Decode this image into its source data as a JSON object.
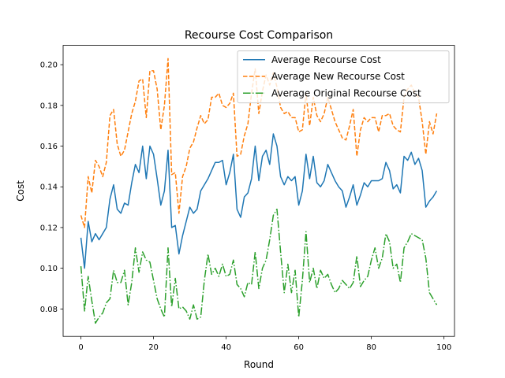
{
  "chart_data": {
    "type": "line",
    "title": "Recourse Cost Comparison",
    "xlabel": "Round",
    "ylabel": "Cost",
    "xlim": [
      -4.9,
      102.9
    ],
    "ylim": [
      0.0665,
      0.2095
    ],
    "xticks": [
      0,
      20,
      40,
      60,
      80,
      100
    ],
    "yticks": [
      0.08,
      0.1,
      0.12,
      0.14,
      0.16,
      0.18,
      0.2
    ],
    "grid": false,
    "legend_position": "upper right",
    "x": [
      0,
      1,
      2,
      3,
      4,
      5,
      6,
      7,
      8,
      9,
      10,
      11,
      12,
      13,
      14,
      15,
      16,
      17,
      18,
      19,
      20,
      21,
      22,
      23,
      24,
      25,
      26,
      27,
      28,
      29,
      30,
      31,
      32,
      33,
      34,
      35,
      36,
      37,
      38,
      39,
      40,
      41,
      42,
      43,
      44,
      45,
      46,
      47,
      48,
      49,
      50,
      51,
      52,
      53,
      54,
      55,
      56,
      57,
      58,
      59,
      60,
      61,
      62,
      63,
      64,
      65,
      66,
      67,
      68,
      69,
      70,
      71,
      72,
      73,
      74,
      75,
      76,
      77,
      78,
      79,
      80,
      81,
      82,
      83,
      84,
      85,
      86,
      87,
      88,
      89,
      90,
      91,
      92,
      93,
      94,
      95,
      96,
      97,
      98
    ],
    "series": [
      {
        "name": "Average Recourse Cost",
        "color": "#1f77b4",
        "dash": "solid",
        "values": [
          0.115,
          0.1,
          0.123,
          0.113,
          0.117,
          0.114,
          0.117,
          0.12,
          0.134,
          0.141,
          0.129,
          0.127,
          0.132,
          0.131,
          0.142,
          0.151,
          0.147,
          0.16,
          0.144,
          0.16,
          0.156,
          0.144,
          0.131,
          0.138,
          0.158,
          0.12,
          0.121,
          0.107,
          0.116,
          0.123,
          0.13,
          0.127,
          0.129,
          0.138,
          0.141,
          0.144,
          0.148,
          0.152,
          0.152,
          0.153,
          0.141,
          0.147,
          0.156,
          0.129,
          0.125,
          0.135,
          0.137,
          0.144,
          0.16,
          0.143,
          0.155,
          0.158,
          0.151,
          0.166,
          0.16,
          0.145,
          0.141,
          0.145,
          0.143,
          0.145,
          0.131,
          0.138,
          0.156,
          0.144,
          0.155,
          0.142,
          0.14,
          0.143,
          0.151,
          0.147,
          0.143,
          0.14,
          0.138,
          0.13,
          0.135,
          0.141,
          0.131,
          0.136,
          0.142,
          0.14,
          0.143,
          0.143,
          0.143,
          0.144,
          0.152,
          0.148,
          0.139,
          0.141,
          0.137,
          0.155,
          0.153,
          0.157,
          0.151,
          0.154,
          0.148,
          0.13,
          0.133,
          0.135,
          0.138
        ]
      },
      {
        "name": "Average New Recourse Cost",
        "color": "#ff7f0e",
        "dash": "dashed",
        "values": [
          0.126,
          0.12,
          0.145,
          0.137,
          0.153,
          0.15,
          0.145,
          0.152,
          0.175,
          0.178,
          0.161,
          0.155,
          0.158,
          0.167,
          0.176,
          0.182,
          0.192,
          0.193,
          0.174,
          0.197,
          0.197,
          0.188,
          0.168,
          0.18,
          0.203,
          0.146,
          0.147,
          0.127,
          0.145,
          0.15,
          0.159,
          0.162,
          0.169,
          0.175,
          0.171,
          0.173,
          0.184,
          0.184,
          0.186,
          0.18,
          0.179,
          0.181,
          0.186,
          0.155,
          0.156,
          0.165,
          0.171,
          0.186,
          0.198,
          0.176,
          0.187,
          0.195,
          0.19,
          0.196,
          0.189,
          0.179,
          0.176,
          0.177,
          0.174,
          0.174,
          0.167,
          0.168,
          0.186,
          0.17,
          0.184,
          0.175,
          0.172,
          0.176,
          0.184,
          0.178,
          0.172,
          0.168,
          0.164,
          0.163,
          0.17,
          0.178,
          0.155,
          0.168,
          0.174,
          0.172,
          0.174,
          0.174,
          0.167,
          0.175,
          0.175,
          0.176,
          0.17,
          0.168,
          0.167,
          0.184,
          0.188,
          0.19,
          0.186,
          0.184,
          0.172,
          0.156,
          0.172,
          0.166,
          0.176
        ]
      },
      {
        "name": "Average Original Recourse Cost",
        "color": "#2ca02c",
        "dash": "dashdot",
        "values": [
          0.101,
          0.079,
          0.096,
          0.084,
          0.073,
          0.076,
          0.078,
          0.083,
          0.085,
          0.099,
          0.093,
          0.093,
          0.099,
          0.082,
          0.093,
          0.11,
          0.098,
          0.108,
          0.104,
          0.103,
          0.094,
          0.085,
          0.08,
          0.076,
          0.11,
          0.081,
          0.095,
          0.08,
          0.081,
          0.079,
          0.075,
          0.082,
          0.075,
          0.076,
          0.094,
          0.107,
          0.097,
          0.1,
          0.096,
          0.102,
          0.096,
          0.097,
          0.104,
          0.092,
          0.09,
          0.086,
          0.093,
          0.092,
          0.108,
          0.09,
          0.1,
          0.104,
          0.114,
          0.126,
          0.129,
          0.108,
          0.088,
          0.102,
          0.088,
          0.099,
          0.076,
          0.094,
          0.118,
          0.093,
          0.1,
          0.09,
          0.099,
          0.095,
          0.097,
          0.092,
          0.088,
          0.09,
          0.094,
          0.092,
          0.09,
          0.093,
          0.106,
          0.091,
          0.094,
          0.096,
          0.104,
          0.11,
          0.1,
          0.105,
          0.117,
          0.113,
          0.1,
          0.102,
          0.093,
          0.11,
          0.113,
          0.117,
          0.116,
          0.115,
          0.114,
          0.105,
          0.088,
          0.085,
          0.082
        ]
      }
    ]
  }
}
